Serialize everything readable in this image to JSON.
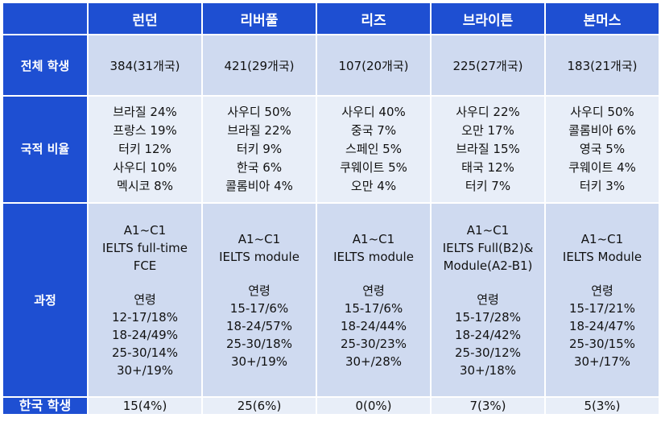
{
  "columns": [
    "런던",
    "리버풀",
    "리즈",
    "브라이튼",
    "본머스"
  ],
  "rows": {
    "total": {
      "label": "전체 학생",
      "values": [
        "384(31개국)",
        "421(29개국)",
        "107(20개국)",
        "225(27개국)",
        "183(21개국)"
      ]
    },
    "nationality": {
      "label": "국적 비율",
      "values": [
        [
          "브라질 24%",
          "프랑스 19%",
          "터키 12%",
          "사우디 10%",
          "멕시코 8%"
        ],
        [
          "사우디 50%",
          "브라질 22%",
          "터키 9%",
          "한국 6%",
          "콜롬비아 4%"
        ],
        [
          "사우디 40%",
          "중국 7%",
          "스페인 5%",
          "쿠웨이트 5%",
          "오만 4%"
        ],
        [
          "사우디 22%",
          "오만 17%",
          "브라질 15%",
          "태국 12%",
          "터키 7%"
        ],
        [
          "사우디 50%",
          "콜롬비아 6%",
          "영국 5%",
          "쿠웨이트 4%",
          "터키 3%"
        ]
      ]
    },
    "course": {
      "label": "과정",
      "age_label": "연령",
      "values": [
        {
          "courses": [
            "A1~C1",
            "IELTS full-time",
            "FCE"
          ],
          "ages": [
            "12-17/18%",
            "18-24/49%",
            "25-30/14%",
            "30+/19%"
          ]
        },
        {
          "courses": [
            "A1~C1",
            "IELTS module"
          ],
          "ages": [
            "15-17/6%",
            "18-24/57%",
            "25-30/18%",
            "30+/19%"
          ]
        },
        {
          "courses": [
            "A1~C1",
            "IELTS module"
          ],
          "ages": [
            "15-17/6%",
            "18-24/44%",
            "25-30/23%",
            "30+/28%"
          ]
        },
        {
          "courses": [
            "A1~C1",
            "IELTS Full(B2)&",
            "Module(A2-B1)"
          ],
          "ages": [
            "15-17/28%",
            "18-24/42%",
            "25-30/12%",
            "30+/18%"
          ]
        },
        {
          "courses": [
            "A1~C1",
            "IELTS Module"
          ],
          "ages": [
            "15-17/21%",
            "18-24/47%",
            "25-30/15%",
            "30+/17%"
          ]
        }
      ]
    },
    "korean": {
      "label": "한국 학생",
      "values": [
        "15(4%)",
        "25(6%)",
        "0(0%)",
        "7(3%)",
        "5(3%)"
      ]
    }
  },
  "colors": {
    "header": "#1e4fd2",
    "cell_dark": "#cfdaf0",
    "cell_light": "#e8eef8"
  }
}
